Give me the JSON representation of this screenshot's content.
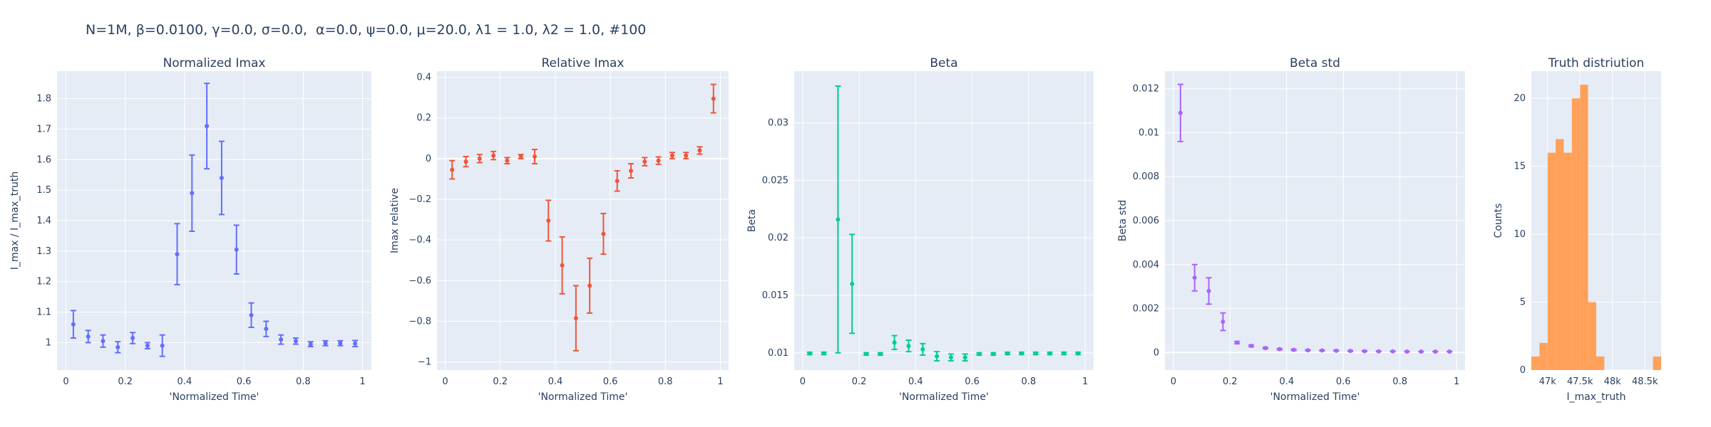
{
  "figure_title": "N=1M, β=0.0100, γ=0.0, σ=0.0,  α=0.0, ψ=0.0, μ=20.0, λ1 = 1.0, λ2 = 1.0, #100",
  "colors": {
    "plot_bg": "#E5ECF6",
    "grid": "#ffffff",
    "text": "#2a3f5f",
    "series1": "#636EFA",
    "series2": "#EF553B",
    "series3": "#00CC96",
    "series4": "#AB63FA",
    "histogram": "#FFA15A"
  },
  "chart_data": [
    {
      "type": "scatter",
      "title": "Normalized Imax",
      "xlabel": "'Normalized Time'",
      "ylabel": "I_max / I_max_truth",
      "color": "#636EFA",
      "xlim": [
        -0.03,
        1.03
      ],
      "ylim": [
        0.91,
        1.89
      ],
      "xticks": [
        0,
        0.2,
        0.4,
        0.6,
        0.8,
        1
      ],
      "xticklabels": [
        "0",
        "0.2",
        "0.4",
        "0.6",
        "0.8",
        "1"
      ],
      "yticks": [
        1,
        1.1,
        1.2,
        1.3,
        1.4,
        1.5,
        1.6,
        1.7,
        1.8
      ],
      "yticklabels": [
        "1",
        "1.1",
        "1.2",
        "1.3",
        "1.4",
        "1.5",
        "1.6",
        "1.7",
        "1.8"
      ],
      "x": [
        0.025,
        0.075,
        0.125,
        0.175,
        0.225,
        0.275,
        0.325,
        0.375,
        0.425,
        0.475,
        0.525,
        0.575,
        0.625,
        0.675,
        0.725,
        0.775,
        0.825,
        0.875,
        0.925,
        0.975
      ],
      "y": [
        1.06,
        1.02,
        1.005,
        0.985,
        1.015,
        0.99,
        0.99,
        1.29,
        1.49,
        1.71,
        1.54,
        1.305,
        1.09,
        1.045,
        1.01,
        1.005,
        0.995,
        0.998,
        0.998,
        0.997
      ],
      "err": [
        0.045,
        0.02,
        0.02,
        0.018,
        0.018,
        0.01,
        0.035,
        0.1,
        0.125,
        0.14,
        0.12,
        0.08,
        0.04,
        0.025,
        0.015,
        0.01,
        0.008,
        0.008,
        0.008,
        0.01
      ]
    },
    {
      "type": "scatter",
      "title": "Relative Imax",
      "xlabel": "'Normalized Time'",
      "ylabel": "Imax relative",
      "color": "#EF553B",
      "xlim": [
        -0.03,
        1.03
      ],
      "ylim": [
        -1.04,
        0.43
      ],
      "xticks": [
        0,
        0.2,
        0.4,
        0.6,
        0.8,
        1
      ],
      "xticklabels": [
        "0",
        "0.2",
        "0.4",
        "0.6",
        "0.8",
        "1"
      ],
      "yticks": [
        -1,
        -0.8,
        -0.6,
        -0.4,
        -0.2,
        0,
        0.2,
        0.4
      ],
      "yticklabels": [
        "−1",
        "−0.8",
        "−0.6",
        "−0.4",
        "−0.2",
        "0",
        "0.2",
        "0.4"
      ],
      "x": [
        0.025,
        0.075,
        0.125,
        0.175,
        0.225,
        0.275,
        0.325,
        0.375,
        0.425,
        0.475,
        0.525,
        0.575,
        0.625,
        0.675,
        0.725,
        0.775,
        0.825,
        0.875,
        0.925,
        0.975
      ],
      "y": [
        -0.055,
        -0.015,
        0.0,
        0.015,
        -0.01,
        0.01,
        0.01,
        -0.305,
        -0.525,
        -0.785,
        -0.625,
        -0.37,
        -0.11,
        -0.06,
        -0.015,
        -0.01,
        0.015,
        0.015,
        0.04,
        0.295
      ],
      "err": [
        0.045,
        0.025,
        0.02,
        0.02,
        0.015,
        0.01,
        0.035,
        0.1,
        0.14,
        0.16,
        0.135,
        0.1,
        0.05,
        0.035,
        0.02,
        0.018,
        0.015,
        0.015,
        0.018,
        0.07
      ]
    },
    {
      "type": "scatter",
      "title": "Beta",
      "xlabel": "'Normalized Time'",
      "ylabel": "Beta",
      "color": "#00CC96",
      "xlim": [
        -0.03,
        1.03
      ],
      "ylim": [
        0.0085,
        0.0345
      ],
      "xticks": [
        0,
        0.2,
        0.4,
        0.6,
        0.8,
        1
      ],
      "xticklabels": [
        "0",
        "0.2",
        "0.4",
        "0.6",
        "0.8",
        "1"
      ],
      "yticks": [
        0.01,
        0.015,
        0.02,
        0.025,
        0.03
      ],
      "yticklabels": [
        "0.01",
        "0.015",
        "0.02",
        "0.025",
        "0.03"
      ],
      "x": [
        0.025,
        0.075,
        0.125,
        0.175,
        0.225,
        0.275,
        0.325,
        0.375,
        0.425,
        0.475,
        0.525,
        0.575,
        0.625,
        0.675,
        0.725,
        0.775,
        0.825,
        0.875,
        0.925,
        0.975
      ],
      "y": [
        0.00995,
        0.00995,
        0.0216,
        0.016,
        0.0099,
        0.0099,
        0.0109,
        0.0106,
        0.0103,
        0.0097,
        0.0096,
        0.0096,
        0.0099,
        0.0099,
        0.00995,
        0.00995,
        0.00995,
        0.00995,
        0.00995,
        0.00995
      ],
      "err": [
        0.0001,
        0.0001,
        0.0116,
        0.0043,
        0.0001,
        0.0001,
        0.0006,
        0.0005,
        0.0005,
        0.0004,
        0.0003,
        0.0003,
        0.0001,
        0.0001,
        0.0001,
        0.0001,
        0.0001,
        0.0001,
        0.0001,
        0.0001
      ]
    },
    {
      "type": "scatter",
      "title": "Beta std",
      "xlabel": "'Normalized Time'",
      "ylabel": "Beta std",
      "color": "#AB63FA",
      "xlim": [
        -0.03,
        1.03
      ],
      "ylim": [
        -0.0008,
        0.0128
      ],
      "xticks": [
        0,
        0.2,
        0.4,
        0.6,
        0.8,
        1
      ],
      "xticklabels": [
        "0",
        "0.2",
        "0.4",
        "0.6",
        "0.8",
        "1"
      ],
      "yticks": [
        0,
        0.002,
        0.004,
        0.006,
        0.008,
        0.01,
        0.012
      ],
      "yticklabels": [
        "0",
        "0.002",
        "0.004",
        "0.006",
        "0.008",
        "0.01",
        "0.012"
      ],
      "x": [
        0.025,
        0.075,
        0.125,
        0.175,
        0.225,
        0.275,
        0.325,
        0.375,
        0.425,
        0.475,
        0.525,
        0.575,
        0.625,
        0.675,
        0.725,
        0.775,
        0.825,
        0.875,
        0.925,
        0.975
      ],
      "y": [
        0.0109,
        0.0034,
        0.0028,
        0.0014,
        0.00045,
        0.0003,
        0.0002,
        0.00015,
        0.00012,
        0.0001,
        9e-05,
        8e-05,
        7e-05,
        6e-05,
        5e-05,
        5e-05,
        4e-05,
        4e-05,
        4e-05,
        4e-05
      ],
      "err": [
        0.0013,
        0.0006,
        0.0006,
        0.0004,
        5e-05,
        4e-05,
        3e-05,
        3e-05,
        3e-05,
        2e-05,
        2e-05,
        2e-05,
        2e-05,
        2e-05,
        1e-05,
        1e-05,
        1e-05,
        1e-05,
        1e-05,
        1e-05
      ]
    },
    {
      "type": "histogram",
      "title": "Truth distriution",
      "xlabel": "I_max_truth",
      "ylabel": "Counts",
      "color": "#FFA15A",
      "xlim": [
        46750,
        48750
      ],
      "ylim": [
        0,
        22
      ],
      "xticks": [
        47000,
        47500,
        48000,
        48500
      ],
      "xticklabels": [
        "47k",
        "47.5k",
        "48k",
        "48.5k"
      ],
      "yticks": [
        0,
        5,
        10,
        15,
        20
      ],
      "yticklabels": [
        "0",
        "5",
        "10",
        "15",
        "20"
      ],
      "bin_start": 46750,
      "bin_width": 125,
      "counts": [
        1,
        2,
        16,
        17,
        16,
        20,
        21,
        5,
        1,
        0,
        0,
        0,
        0,
        0,
        0,
        1
      ]
    }
  ]
}
